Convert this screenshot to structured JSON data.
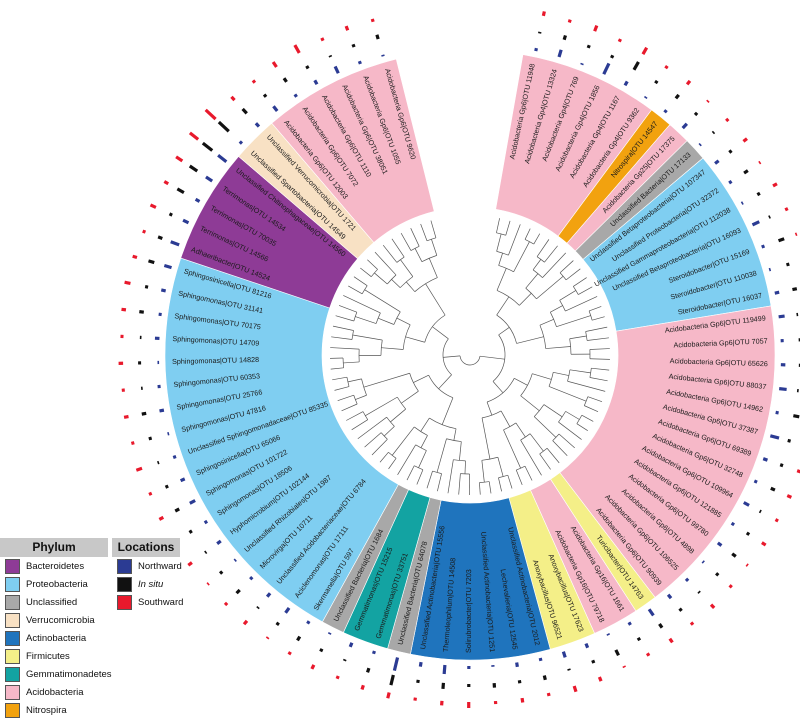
{
  "colors": {
    "Bacteroidetes": "#8e3b96",
    "Proteobacteria": "#7fcef1",
    "Unclassified": "#a8a8a8",
    "Verrucomicrobia": "#f8e1c4",
    "Actinobacteria": "#1f74bd",
    "Firmicutes": "#f4ef88",
    "Gemmatimonadetes": "#13a3a2",
    "Acidobacteria": "#f6b8c8",
    "Nitrospira": "#f2a20f",
    "Northward": "#2b3b93",
    "In situ": "#111111",
    "Southward": "#e8192c"
  },
  "legend": {
    "phylum_title": "Phylum",
    "phyla": [
      "Bacteroidetes",
      "Proteobacteria",
      "Unclassified",
      "Verrucomicrobia",
      "Actinobacteria",
      "Firmicutes",
      "Gemmatimonadetes",
      "Acidobacteria",
      "Nitrospira"
    ],
    "locations_title": "Locations",
    "locations": [
      "Northward",
      "In situ",
      "Southward"
    ]
  },
  "tree_leaves": [
    {
      "label": "Acidobacteria Gp6|OTU 11948",
      "phylum": "Acidobacteria"
    },
    {
      "label": "Acidobacteria Gp4|OTU 13324",
      "phylum": "Acidobacteria"
    },
    {
      "label": "Acidobacteria Gp4|OTU 769",
      "phylum": "Acidobacteria"
    },
    {
      "label": "Acidobacteria Gp4|OTU 1856",
      "phylum": "Acidobacteria"
    },
    {
      "label": "Acidobacteria Gp4|OTU 1167",
      "phylum": "Acidobacteria"
    },
    {
      "label": "Acidobacteria Gp4|OTU 9362",
      "phylum": "Acidobacteria"
    },
    {
      "label": "Nitrospira|OTU 14547",
      "phylum": "Nitrospira"
    },
    {
      "label": "Acidobacteria Gp25|OTU 17375",
      "phylum": "Acidobacteria"
    },
    {
      "label": "Unclassified Bacteria|OTU 17133",
      "phylum": "Unclassified"
    },
    {
      "label": "Unclassified Betaproteobacteria|OTU 107347",
      "phylum": "Proteobacteria"
    },
    {
      "label": "Unclassified Proteobacteria|OTU 32372",
      "phylum": "Proteobacteria"
    },
    {
      "label": "Unclassified Gammaproteobacteria|OTU 112038",
      "phylum": "Proteobacteria"
    },
    {
      "label": "Unclassified Betaproteobacteria|OTU 16093",
      "phylum": "Proteobacteria"
    },
    {
      "label": "Steroidobacter|OTU 15169",
      "phylum": "Proteobacteria"
    },
    {
      "label": "Steroidobacter|OTU 110038",
      "phylum": "Proteobacteria"
    },
    {
      "label": "Steroidobacter|OTU 16037",
      "phylum": "Proteobacteria"
    },
    {
      "label": "Acidobacteria Gp6|OTU 119499",
      "phylum": "Acidobacteria"
    },
    {
      "label": "Acidobacteria Gp6|OTU 7057",
      "phylum": "Acidobacteria"
    },
    {
      "label": "Acidobacteria Gp6|OTU 65626",
      "phylum": "Acidobacteria"
    },
    {
      "label": "Acidobacteria Gp6|OTU 88037",
      "phylum": "Acidobacteria"
    },
    {
      "label": "Acidobacteria Gp6|OTU 14962",
      "phylum": "Acidobacteria"
    },
    {
      "label": "Acidobacteria Gp6|OTU 37387",
      "phylum": "Acidobacteria"
    },
    {
      "label": "Acidobacteria Gp6|OTU 69389",
      "phylum": "Acidobacteria"
    },
    {
      "label": "Acidobacteria Gp6|OTU 32748",
      "phylum": "Acidobacteria"
    },
    {
      "label": "Acidobacteria Gp6|OTU 109964",
      "phylum": "Acidobacteria"
    },
    {
      "label": "Acidobacteria Gp6|OTU 121885",
      "phylum": "Acidobacteria"
    },
    {
      "label": "Acidobacteria Gp6|OTU 99780",
      "phylum": "Acidobacteria"
    },
    {
      "label": "Acidobacteria Gp6|OTU 4898",
      "phylum": "Acidobacteria"
    },
    {
      "label": "Acidobacteria Gp6|OTU 106525",
      "phylum": "Acidobacteria"
    },
    {
      "label": "Acidobacteria Gp6|OTU 90939",
      "phylum": "Acidobacteria"
    },
    {
      "label": "Turicibacter|OTU 14763",
      "phylum": "Firmicutes"
    },
    {
      "label": "Acidobacteria Gp16|OTU 1661",
      "phylum": "Acidobacteria"
    },
    {
      "label": "Acidobacteria Gp16|OTU 79718",
      "phylum": "Acidobacteria"
    },
    {
      "label": "Anoxybacillus|OTU 17623",
      "phylum": "Firmicutes"
    },
    {
      "label": "Anoxybacillus|OTU 96521",
      "phylum": "Firmicutes"
    },
    {
      "label": "Unclassified Actinobacteria|OTU 2012",
      "phylum": "Actinobacteria"
    },
    {
      "label": "Lechevalieria|OTU 12545",
      "phylum": "Actinobacteria"
    },
    {
      "label": "Unclassified Actinobacteria|OTU 1251",
      "phylum": "Actinobacteria"
    },
    {
      "label": "Solirubrobacter|OTU 7203",
      "phylum": "Actinobacteria"
    },
    {
      "label": "Thermoleophilum|OTU 14508",
      "phylum": "Actinobacteria"
    },
    {
      "label": "Unclassified Actinobacteria|OTU 15556",
      "phylum": "Actinobacteria"
    },
    {
      "label": "Unclassified Bacteria|OTU 64078",
      "phylum": "Unclassified"
    },
    {
      "label": "Gemmatimonas|OTU 33751",
      "phylum": "Gemmatimonadetes"
    },
    {
      "label": "Gemmatimonas|OTU 15215",
      "phylum": "Gemmatimonadetes"
    },
    {
      "label": "Unclassified Bacteria|OTU 1684",
      "phylum": "Unclassified"
    },
    {
      "label": "Skermanella|OTU 597",
      "phylum": "Proteobacteria"
    },
    {
      "label": "Aciclenomonas|OTU 17111",
      "phylum": "Proteobacteria"
    },
    {
      "label": "Unclassified Acidobacteriaceae|OTU 6784",
      "phylum": "Proteobacteria"
    },
    {
      "label": "Microvirga|OTU 10711",
      "phylum": "Proteobacteria"
    },
    {
      "label": "Unclassified Rhizobiales|OTU 1987",
      "phylum": "Proteobacteria"
    },
    {
      "label": "Hyphomicrobium|OTU 102144",
      "phylum": "Proteobacteria"
    },
    {
      "label": "Sphingomonas|OTU 18506",
      "phylum": "Proteobacteria"
    },
    {
      "label": "Sphingomonas|OTU 101722",
      "phylum": "Proteobacteria"
    },
    {
      "label": "Sphingosinicella|OTU 65066",
      "phylum": "Proteobacteria"
    },
    {
      "label": "Unclassified Sphingomonadaceae|OTU 85335",
      "phylum": "Proteobacteria"
    },
    {
      "label": "Sphingomonas|OTU 47816",
      "phylum": "Proteobacteria"
    },
    {
      "label": "Sphingomonas|OTU 25766",
      "phylum": "Proteobacteria"
    },
    {
      "label": "Sphingomonas|OTU 60353",
      "phylum": "Proteobacteria"
    },
    {
      "label": "Sphingomonas|OTU 14828",
      "phylum": "Proteobacteria"
    },
    {
      "label": "Sphingomonas|OTU 14709",
      "phylum": "Proteobacteria"
    },
    {
      "label": "Sphingomonas|OTU 70175",
      "phylum": "Proteobacteria"
    },
    {
      "label": "Sphingomonas|OTU 31141",
      "phylum": "Proteobacteria"
    },
    {
      "label": "Sphingosinicella|OTU 81216",
      "phylum": "Proteobacteria"
    },
    {
      "label": "Adhaeribacter|OTU 14524",
      "phylum": "Bacteroidetes"
    },
    {
      "label": "Terrimonas|OTU 14566",
      "phylum": "Bacteroidetes"
    },
    {
      "label": "Terrimonas|OTU 70035",
      "phylum": "Bacteroidetes"
    },
    {
      "label": "Terrimonas|OTU 14534",
      "phylum": "Bacteroidetes"
    },
    {
      "label": "Unclassified Chitinophagaceae|OTU 14560",
      "phylum": "Bacteroidetes"
    },
    {
      "label": "Unclassified Spartobacteria|OTU 14549",
      "phylum": "Verrucomicrobia"
    },
    {
      "label": "Unclassified Verrucomicrobia|OTU 1721",
      "phylum": "Verrucomicrobia"
    },
    {
      "label": "Acidobacteria Gp6|OTU 12003",
      "phylum": "Acidobacteria"
    },
    {
      "label": "Acidobacteria Gp6|OTU 7072",
      "phylum": "Acidobacteria"
    },
    {
      "label": "Acidobacteria Gp6|OTU 1110",
      "phylum": "Acidobacteria"
    },
    {
      "label": "Acidobacteria Gp6|OTU 38051",
      "phylum": "Acidobacteria"
    },
    {
      "label": "Acidobacteria Gp6|OTU 1055",
      "phylum": "Acidobacteria"
    },
    {
      "label": "Acidobacteria Gp6|OTU 9620",
      "phylum": "Acidobacteria"
    }
  ],
  "abundance_rings": [
    {
      "location": "Northward",
      "values": [
        0.2,
        0.5,
        0.1,
        0.8,
        0.3,
        0.1,
        0.2,
        0.4,
        0.1,
        0.3,
        0.2,
        0.1,
        0.5,
        0.2,
        0.1,
        0.3,
        0.4,
        0.2,
        0.3,
        0.5,
        0.2,
        0.6,
        0.3,
        0.2,
        0.4,
        0.2,
        0.3,
        0.1,
        0.2,
        0.3,
        0.5,
        0.2,
        0.1,
        0.3,
        0.4,
        0.2,
        0.3,
        0.1,
        0.2,
        0.6,
        0.3,
        0.9,
        0.2,
        0.3,
        0.1,
        0.2,
        0.4,
        0.3,
        0.2,
        0.1,
        0.3,
        0.2,
        0.4,
        0.3,
        0.2,
        0.1,
        0.3,
        0.2,
        0.1,
        0.3,
        0.2,
        0.3,
        0.5,
        0.6,
        0.4,
        0.3,
        0.5,
        0.7,
        0.2,
        0.3,
        0.4,
        0.2,
        0.3,
        0.5,
        0.2,
        0.1
      ]
    },
    {
      "location": "In situ",
      "values": [
        0.1,
        0.3,
        0.2,
        0.2,
        0.6,
        0.2,
        0.3,
        0.2,
        0.1,
        0.2,
        0.3,
        0.2,
        0.1,
        0.4,
        0.2,
        0.3,
        0.1,
        0.3,
        0.2,
        0.1,
        0.4,
        0.2,
        0.2,
        0.3,
        0.1,
        0.2,
        0.3,
        0.2,
        0.1,
        0.2,
        0.3,
        0.2,
        0.4,
        0.2,
        0.1,
        0.3,
        0.2,
        0.3,
        0.2,
        0.4,
        0.2,
        0.7,
        0.3,
        0.1,
        0.2,
        0.3,
        0.2,
        0.1,
        0.3,
        0.2,
        0.1,
        0.2,
        0.3,
        0.2,
        0.1,
        0.2,
        0.3,
        0.1,
        0.2,
        0.1,
        0.3,
        0.2,
        0.4,
        0.3,
        0.2,
        0.5,
        0.6,
        0.8,
        0.9,
        0.4,
        0.2,
        0.3,
        0.2,
        0.1,
        0.2,
        0.3
      ]
    },
    {
      "location": "Southward",
      "values": [
        0.3,
        0.2,
        0.4,
        0.2,
        0.5,
        0.2,
        0.3,
        0.1,
        0.2,
        0.3,
        0.1,
        0.3,
        0.2,
        0.1,
        0.3,
        0.2,
        0.4,
        0.3,
        0.2,
        0.3,
        0.1,
        0.2,
        0.4,
        0.3,
        0.2,
        0.3,
        0.1,
        0.2,
        0.3,
        0.2,
        0.3,
        0.2,
        0.1,
        0.3,
        0.4,
        0.2,
        0.3,
        0.2,
        0.4,
        0.3,
        0.2,
        0.4,
        0.3,
        0.2,
        0.3,
        0.2,
        0.1,
        0.3,
        0.2,
        0.1,
        0.3,
        0.2,
        0.3,
        0.2,
        0.4,
        0.2,
        0.3,
        0.2,
        0.3,
        0.2,
        0.3,
        0.4,
        0.3,
        0.2,
        0.4,
        0.3,
        0.5,
        0.7,
        0.9,
        0.3,
        0.2,
        0.4,
        0.6,
        0.2,
        0.3,
        0.2
      ]
    }
  ]
}
